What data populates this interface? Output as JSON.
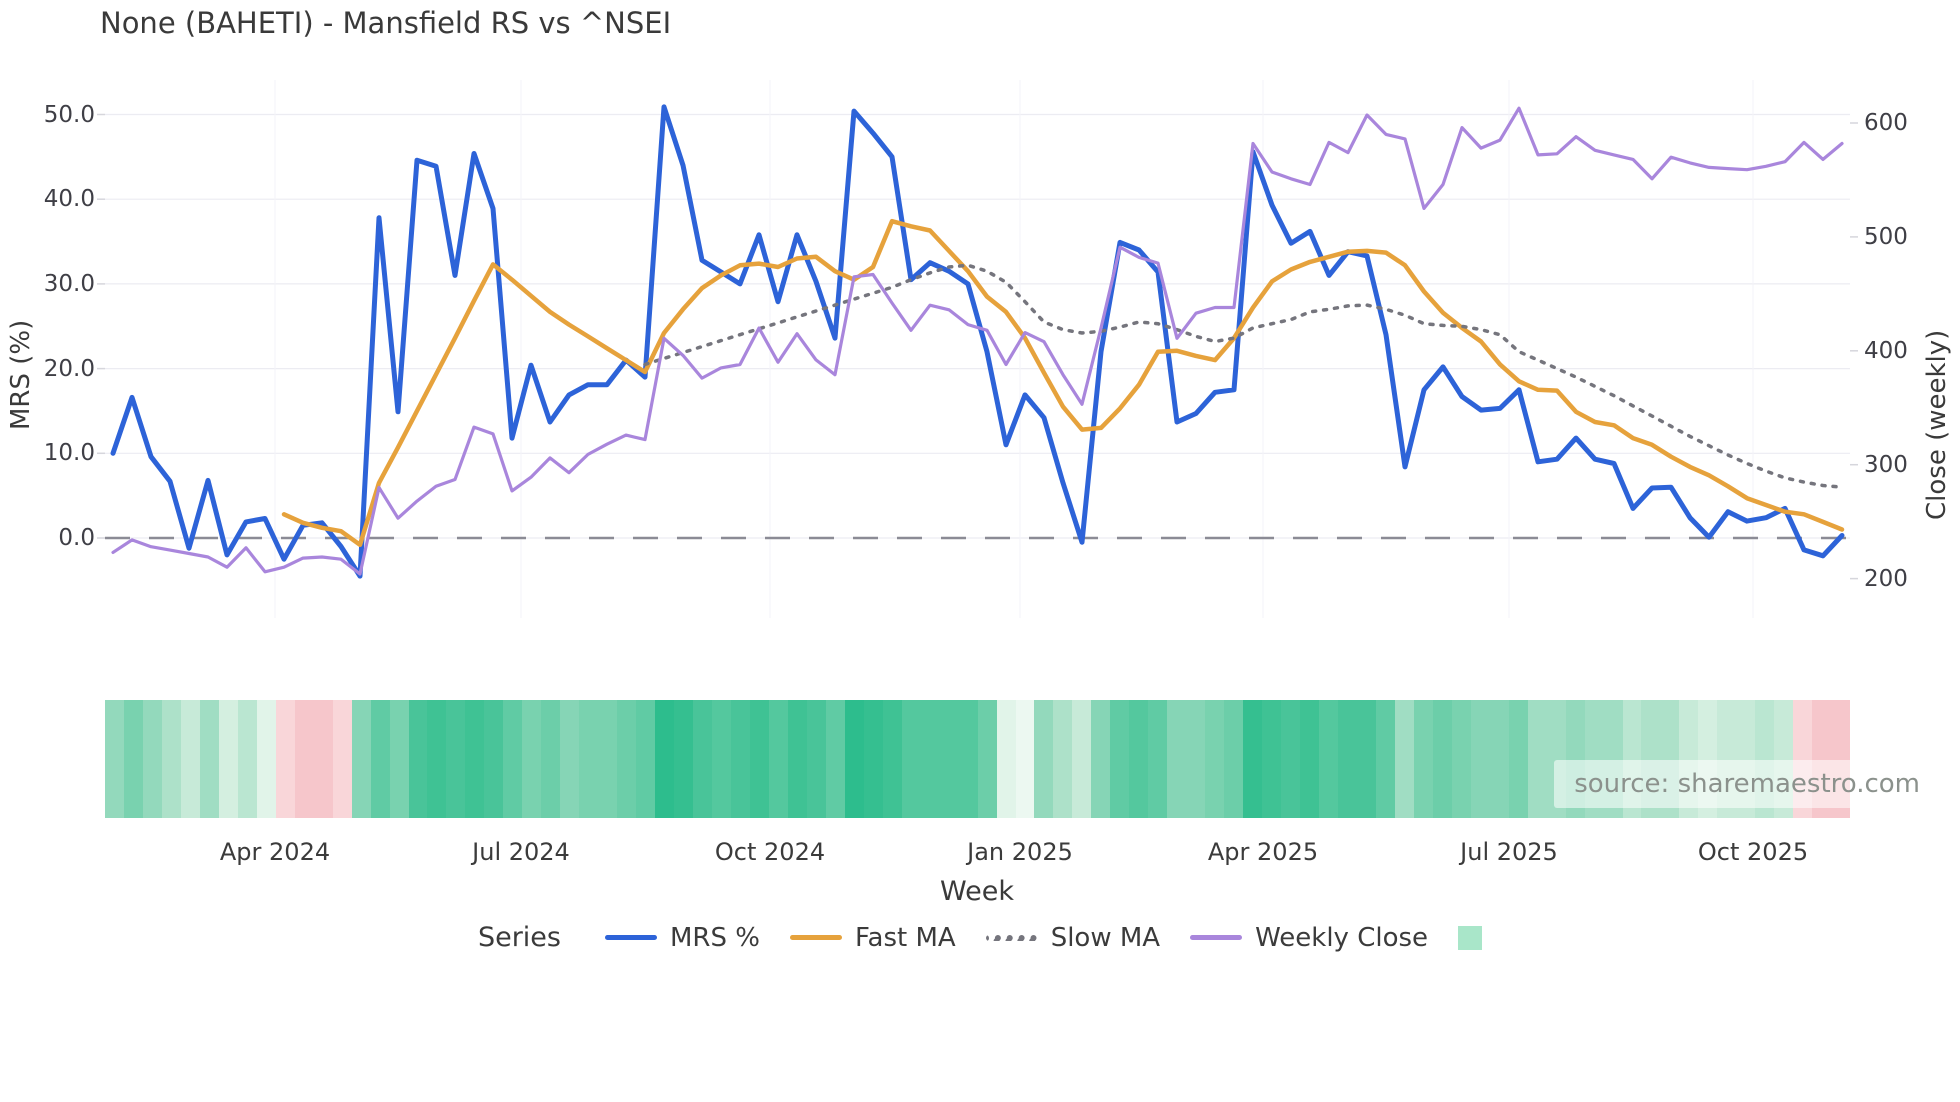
{
  "page": {
    "title": "None (BAHETI) - Mansfield RS vs ^NSEI",
    "source_note": "source: sharemaestro.com"
  },
  "legend": {
    "title": "Series",
    "items": [
      {
        "label": "MRS %",
        "color": "#2d63d8",
        "style": "solid"
      },
      {
        "label": "Fast MA",
        "color": "#e6a23c",
        "style": "solid"
      },
      {
        "label": "Slow MA",
        "color": "#75757d",
        "style": "dotted"
      },
      {
        "label": "Weekly Close",
        "color": "#a986dc",
        "style": "solid"
      }
    ],
    "extra_swatch_color": "#a9e6c9"
  },
  "chart_data": {
    "type": "line",
    "title": "None (BAHETI) - Mansfield RS vs ^NSEI",
    "xlabel": "Week",
    "grid": true,
    "legend_position": "bottom",
    "x_tick_labels": [
      "Apr 2024",
      "Jul 2024",
      "Oct 2024",
      "Jan 2025",
      "Apr 2025",
      "Jul 2025",
      "Oct 2025"
    ],
    "y_left_axis": {
      "label": "MRS (%)",
      "tick_labels": [
        "50.0",
        "40.0",
        "30.0",
        "20.0",
        "10.0",
        "0.0"
      ],
      "tick_values": [
        50,
        40,
        30,
        20,
        10,
        0
      ],
      "range": [
        -7,
        53
      ]
    },
    "y_right_axis": {
      "label": "Close (weekly)",
      "tick_labels": [
        "600",
        "500",
        "400",
        "300",
        "200"
      ],
      "tick_values": [
        600,
        500,
        400,
        300,
        200
      ],
      "range": [
        160,
        625
      ]
    },
    "zero_line_left_axis": 0,
    "weeks_span": "Feb 2024 - Nov 2025",
    "series": [
      {
        "name": "MRS %",
        "axis": "left",
        "color": "#2d63d8",
        "style": "solid",
        "width": 5,
        "values": [
          10.0,
          16.6,
          9.6,
          6.7,
          -1.2,
          6.8,
          -2.0,
          1.9,
          2.3,
          -2.5,
          1.5,
          1.8,
          -1.0,
          -4.5,
          37.8,
          14.9,
          44.6,
          43.9,
          31.0,
          45.4,
          38.9,
          11.8,
          20.4,
          13.7,
          16.9,
          18.1,
          18.1,
          21.0,
          19.0,
          50.9,
          44.0,
          32.8,
          31.4,
          30.0,
          35.8,
          27.9,
          35.8,
          30.3,
          23.6,
          50.4,
          47.8,
          45.0,
          30.5,
          32.5,
          31.5,
          30.0,
          22.0,
          11.0,
          16.9,
          14.2,
          6.5,
          -0.5,
          22.0,
          34.9,
          34.0,
          31.4,
          13.7,
          14.7,
          17.2,
          17.5,
          45.6,
          39.3,
          34.8,
          36.2,
          31.0,
          33.8,
          33.3,
          24.0,
          8.4,
          17.5,
          20.2,
          16.7,
          15.1,
          15.3,
          17.5,
          9.0,
          9.3,
          11.8,
          9.3,
          8.8,
          3.5,
          5.9,
          6.0,
          2.4,
          0.1,
          3.1,
          2.0,
          2.4,
          3.5,
          -1.4,
          -2.1,
          0.3
        ]
      },
      {
        "name": "Fast MA",
        "axis": "left",
        "color": "#e6a23c",
        "style": "solid",
        "width": 4.5,
        "values": [
          null,
          null,
          null,
          null,
          null,
          null,
          null,
          null,
          null,
          2.8,
          1.8,
          1.2,
          0.8,
          -0.8,
          6.5,
          10.7,
          15.0,
          19.3,
          23.6,
          28.0,
          32.3,
          30.5,
          28.6,
          26.7,
          25.2,
          23.8,
          22.4,
          21.0,
          19.6,
          24.2,
          27.0,
          29.5,
          31.0,
          32.2,
          32.4,
          32.0,
          33.0,
          33.2,
          31.5,
          30.5,
          32.0,
          37.4,
          36.8,
          36.3,
          33.9,
          31.5,
          28.5,
          26.7,
          23.6,
          19.5,
          15.5,
          12.8,
          13.0,
          15.3,
          18.1,
          22.0,
          22.1,
          21.5,
          21.0,
          23.6,
          27.2,
          30.3,
          31.7,
          32.6,
          33.2,
          33.8,
          33.9,
          33.7,
          32.2,
          29.1,
          26.6,
          24.8,
          23.2,
          20.5,
          18.5,
          17.5,
          17.4,
          14.9,
          13.7,
          13.3,
          11.8,
          11.0,
          9.6,
          8.4,
          7.4,
          6.1,
          4.7,
          3.9,
          3.1,
          2.8,
          1.9,
          1.0
        ]
      },
      {
        "name": "Slow MA",
        "axis": "left",
        "color": "#75757d",
        "style": "dotted",
        "width": 3.5,
        "values": [
          null,
          null,
          null,
          null,
          null,
          null,
          null,
          null,
          null,
          null,
          null,
          null,
          null,
          null,
          null,
          null,
          null,
          null,
          null,
          null,
          null,
          null,
          null,
          null,
          null,
          null,
          null,
          null,
          20.5,
          21.2,
          21.9,
          22.6,
          23.3,
          24.0,
          24.7,
          25.4,
          26.1,
          26.8,
          27.5,
          28.2,
          28.9,
          29.6,
          30.5,
          31.3,
          32.0,
          32.2,
          31.5,
          30.2,
          27.9,
          25.5,
          24.6,
          24.2,
          24.4,
          24.9,
          25.5,
          25.3,
          24.6,
          23.8,
          23.2,
          23.6,
          24.8,
          25.3,
          25.8,
          26.7,
          27.0,
          27.4,
          27.5,
          27.0,
          26.3,
          25.3,
          25.1,
          25.0,
          24.6,
          24.0,
          22.0,
          21.0,
          20.0,
          19.0,
          17.9,
          16.8,
          15.6,
          14.4,
          13.2,
          12.0,
          10.9,
          9.8,
          8.8,
          7.9,
          7.1,
          6.6,
          6.2,
          6.0
        ]
      },
      {
        "name": "Weekly Close",
        "axis": "right",
        "color": "#a986dc",
        "style": "solid",
        "width": 3.2,
        "values": [
          223,
          234,
          228,
          225,
          222,
          219,
          210,
          227,
          206,
          210,
          218,
          219,
          217,
          204,
          280,
          253,
          268,
          281,
          287,
          333,
          327,
          277,
          289,
          306,
          293,
          309,
          318,
          326,
          322,
          411,
          396,
          376,
          385,
          388,
          420,
          390,
          415,
          392,
          379,
          465,
          467,
          442,
          418,
          440,
          436,
          423,
          418,
          388,
          416,
          408,
          379,
          353,
          420,
          491,
          482,
          477,
          411,
          433,
          438,
          438,
          582,
          557,
          551,
          546,
          583,
          574,
          607,
          590,
          586,
          525,
          546,
          596,
          578,
          585,
          613,
          572,
          573,
          588,
          576,
          572,
          568,
          551,
          570,
          565,
          561,
          560,
          559,
          562,
          566,
          583,
          568,
          582
        ]
      }
    ],
    "heat_strip": [
      "#93d9bc",
      "#79d2af",
      "#93d9bc",
      "#ade1c9",
      "#c7ead8",
      "#a0ddc3",
      "#d4efe0",
      "#bae6d1",
      "#e1f4e9",
      "#f9d6d9",
      "#f6c6cb",
      "#f6c6cb",
      "#f9d6d9",
      "#86d5b6",
      "#60cba4",
      "#79d2af",
      "#49c499",
      "#3fc294",
      "#49c499",
      "#3fc294",
      "#49c499",
      "#60cba4",
      "#79d2af",
      "#6ccea9",
      "#86d5b6",
      "#79d2af",
      "#79d2af",
      "#6ccea9",
      "#60cba4",
      "#2dbd8d",
      "#35bf90",
      "#49c499",
      "#54c89e",
      "#49c499",
      "#3fc294",
      "#54c89e",
      "#3fc294",
      "#49c499",
      "#60cba4",
      "#2dbd8d",
      "#35bf90",
      "#3fc294",
      "#54c89e",
      "#54c89e",
      "#54c89e",
      "#54c89e",
      "#6ccea9",
      "#e1f4e9",
      "#ecf8f1",
      "#93d9bc",
      "#ade1c9",
      "#c7ead8",
      "#86d5b6",
      "#60cba4",
      "#54c89e",
      "#60cba4",
      "#86d5b6",
      "#86d5b6",
      "#79d2af",
      "#6ccea9",
      "#35bf90",
      "#3fc294",
      "#49c499",
      "#3fc294",
      "#54c89e",
      "#49c499",
      "#49c499",
      "#60cba4",
      "#a0ddc3",
      "#79d2af",
      "#6ccea9",
      "#79d2af",
      "#86d5b6",
      "#86d5b6",
      "#79d2af",
      "#a0ddc3",
      "#a0ddc3",
      "#93d9bc",
      "#a0ddc3",
      "#a0ddc3",
      "#bae6d1",
      "#ade1c9",
      "#ade1c9",
      "#c7ead8",
      "#d4efe0",
      "#c7ead8",
      "#c7ead8",
      "#bae6d1",
      "#c7ead8",
      "#f9d6d9",
      "#f6c6cb",
      "#f6c6cb"
    ]
  }
}
